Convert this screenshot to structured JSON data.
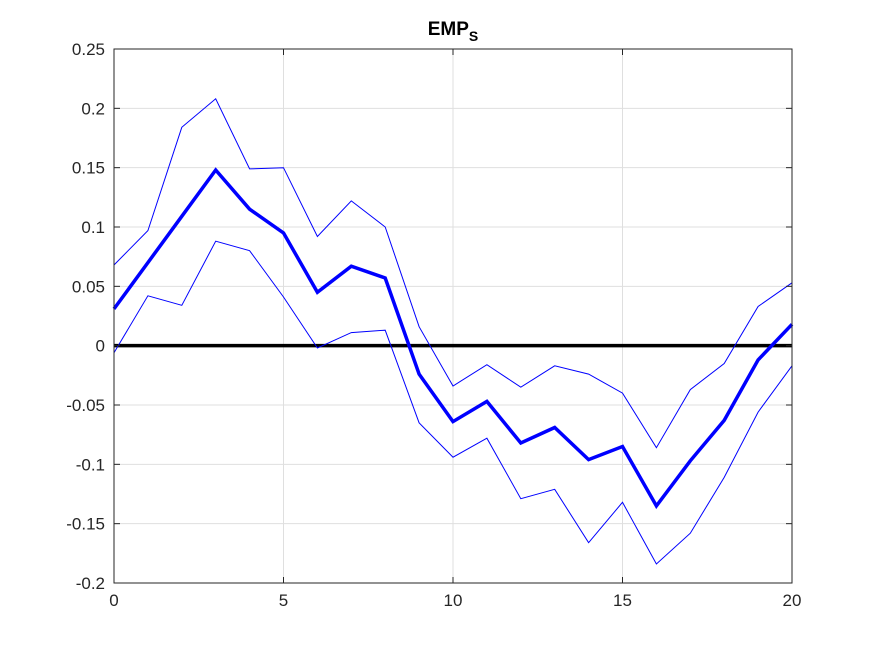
{
  "chart_data": {
    "type": "line",
    "title": "EMP",
    "title_subscript": "S",
    "xlabel": "",
    "ylabel": "",
    "xlim": [
      0,
      20
    ],
    "ylim": [
      -0.2,
      0.25
    ],
    "xticks": [
      0,
      5,
      10,
      15,
      20
    ],
    "yticks": [
      -0.2,
      -0.15,
      -0.1,
      -0.05,
      0,
      0.05,
      0.1,
      0.15,
      0.2,
      0.25
    ],
    "xtick_labels": [
      "0",
      "5",
      "10",
      "15",
      "20"
    ],
    "ytick_labels": [
      "-0.2",
      "-0.15",
      "-0.1",
      "-0.05",
      "0",
      "0.05",
      "0.1",
      "0.15",
      "0.2",
      "0.25"
    ],
    "grid": true,
    "legend": "none",
    "x": [
      0,
      1,
      2,
      3,
      4,
      5,
      6,
      7,
      8,
      9,
      10,
      11,
      12,
      13,
      14,
      15,
      16,
      17,
      18,
      19,
      20
    ],
    "series": [
      {
        "role": "upper",
        "color": "#0000ff",
        "values": [
          0.068,
          0.097,
          0.184,
          0.208,
          0.149,
          0.15,
          0.092,
          0.122,
          0.1,
          0.016,
          -0.034,
          -0.016,
          -0.035,
          -0.017,
          -0.024,
          -0.04,
          -0.086,
          -0.037,
          -0.015,
          0.033,
          0.053
        ]
      },
      {
        "role": "median",
        "color": "#0000ff",
        "values": [
          0.031,
          0.07,
          0.109,
          0.148,
          0.115,
          0.095,
          0.045,
          0.067,
          0.057,
          -0.024,
          -0.064,
          -0.047,
          -0.082,
          -0.069,
          -0.096,
          -0.085,
          -0.135,
          -0.097,
          -0.063,
          -0.012,
          0.018
        ]
      },
      {
        "role": "lower",
        "color": "#0000ff",
        "values": [
          -0.006,
          0.042,
          0.034,
          0.088,
          0.08,
          0.041,
          -0.002,
          0.011,
          0.013,
          -0.065,
          -0.094,
          -0.078,
          -0.129,
          -0.121,
          -0.166,
          -0.132,
          -0.184,
          -0.158,
          -0.111,
          -0.056,
          -0.017
        ]
      }
    ],
    "zero_line": {
      "y": 0,
      "color": "#000000"
    }
  }
}
